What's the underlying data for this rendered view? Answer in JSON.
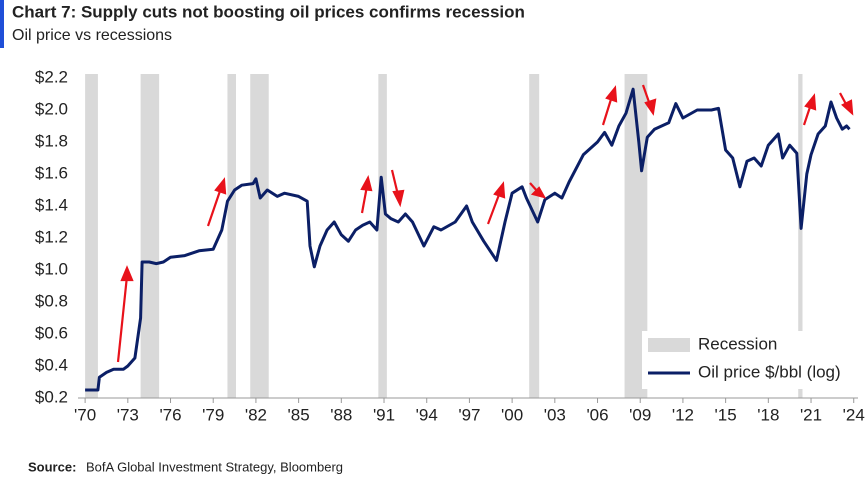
{
  "chart_data": {
    "type": "line",
    "title": "Chart 7: Supply cuts not boosting oil prices confirms recession",
    "subtitle": "Oil price vs recessions",
    "source_label": "Source:",
    "source": "BofA Global Investment Strategy, Bloomberg",
    "xlim": [
      1969.5,
      2024.3
    ],
    "ylim": [
      0.2,
      2.2
    ],
    "xticks": [
      {
        "value": 1970,
        "label": "'70"
      },
      {
        "value": 1973,
        "label": "'73"
      },
      {
        "value": 1976,
        "label": "'76"
      },
      {
        "value": 1979,
        "label": "'79"
      },
      {
        "value": 1982,
        "label": "'82"
      },
      {
        "value": 1985,
        "label": "'85"
      },
      {
        "value": 1988,
        "label": "'88"
      },
      {
        "value": 1991,
        "label": "'91"
      },
      {
        "value": 1994,
        "label": "'94"
      },
      {
        "value": 1997,
        "label": "'97"
      },
      {
        "value": 2000,
        "label": "'00"
      },
      {
        "value": 2003,
        "label": "'03"
      },
      {
        "value": 2006,
        "label": "'06"
      },
      {
        "value": 2009,
        "label": "'09"
      },
      {
        "value": 2012,
        "label": "'12"
      },
      {
        "value": 2015,
        "label": "'15"
      },
      {
        "value": 2018,
        "label": "'18"
      },
      {
        "value": 2021,
        "label": "'21"
      },
      {
        "value": 2024,
        "label": "'24"
      }
    ],
    "yticks": [
      {
        "value": 0.2,
        "label": "$0.2"
      },
      {
        "value": 0.4,
        "label": "$0.4"
      },
      {
        "value": 0.6,
        "label": "$0.6"
      },
      {
        "value": 0.8,
        "label": "$0.8"
      },
      {
        "value": 1.0,
        "label": "$1.0"
      },
      {
        "value": 1.2,
        "label": "$1.2"
      },
      {
        "value": 1.4,
        "label": "$1.4"
      },
      {
        "value": 1.6,
        "label": "$1.6"
      },
      {
        "value": 1.8,
        "label": "$1.8"
      },
      {
        "value": 2.0,
        "label": "$2.0"
      },
      {
        "value": 2.2,
        "label": "$2.2"
      }
    ],
    "grid": false,
    "legend": "bottom-right",
    "recessions": {
      "name": "Recession",
      "color": "#d9d9d9",
      "ranges": [
        [
          1970.0,
          1970.9
        ],
        [
          1973.9,
          1975.2
        ],
        [
          1980.0,
          1980.6
        ],
        [
          1981.6,
          1982.9
        ],
        [
          1990.6,
          1991.2
        ],
        [
          2001.2,
          2001.9
        ],
        [
          2007.9,
          2009.5
        ],
        [
          2020.1,
          2020.4
        ]
      ]
    },
    "series": [
      {
        "name": "Oil price $/bbl (log)",
        "color": "#0b1f66",
        "x": [
          1970,
          1970.9,
          1971,
          1971.5,
          1972,
          1972.7,
          1973,
          1973.5,
          1973.9,
          1974.0,
          1974.5,
          1975,
          1975.5,
          1976,
          1977,
          1978,
          1979,
          1979.6,
          1980,
          1980.5,
          1981,
          1981.8,
          1982,
          1982.3,
          1982.8,
          1983.5,
          1984,
          1985,
          1985.6,
          1985.8,
          1986.1,
          1986.5,
          1987,
          1987.5,
          1988,
          1988.5,
          1989,
          1989.5,
          1990,
          1990.5,
          1990.8,
          1991.1,
          1991.5,
          1992,
          1992.5,
          1993,
          1993.8,
          1994.5,
          1995,
          1996,
          1996.8,
          1997.2,
          1998,
          1998.9,
          1999.5,
          2000,
          2000.7,
          2001,
          2001.8,
          2002.3,
          2003,
          2003.5,
          2004,
          2005,
          2006,
          2006.5,
          2007,
          2007.5,
          2008,
          2008.5,
          2008.9,
          2009.1,
          2009.5,
          2010,
          2011,
          2011.5,
          2012,
          2013,
          2014,
          2014.5,
          2015,
          2015.5,
          2016,
          2016.5,
          2017,
          2017.5,
          2018,
          2018.7,
          2019,
          2019.5,
          2020,
          2020.3,
          2020.7,
          2021,
          2021.5,
          2022,
          2022.4,
          2022.8,
          2023.2,
          2023.5,
          2023.7
        ],
        "values": [
          0.25,
          0.25,
          0.33,
          0.36,
          0.38,
          0.38,
          0.4,
          0.45,
          0.7,
          1.05,
          1.05,
          1.04,
          1.05,
          1.08,
          1.09,
          1.12,
          1.13,
          1.25,
          1.43,
          1.5,
          1.53,
          1.54,
          1.57,
          1.45,
          1.5,
          1.46,
          1.48,
          1.46,
          1.43,
          1.15,
          1.02,
          1.15,
          1.25,
          1.3,
          1.22,
          1.18,
          1.25,
          1.28,
          1.3,
          1.25,
          1.58,
          1.35,
          1.32,
          1.3,
          1.35,
          1.3,
          1.15,
          1.27,
          1.25,
          1.3,
          1.4,
          1.3,
          1.18,
          1.06,
          1.3,
          1.48,
          1.52,
          1.45,
          1.3,
          1.44,
          1.48,
          1.45,
          1.55,
          1.72,
          1.8,
          1.86,
          1.78,
          1.9,
          1.98,
          2.13,
          1.8,
          1.62,
          1.83,
          1.88,
          1.92,
          2.04,
          1.95,
          2.0,
          2.0,
          2.01,
          1.75,
          1.7,
          1.52,
          1.68,
          1.7,
          1.65,
          1.78,
          1.85,
          1.7,
          1.78,
          1.73,
          1.26,
          1.6,
          1.72,
          1.85,
          1.9,
          2.05,
          1.95,
          1.88,
          1.9,
          1.88
        ]
      }
    ]
  }
}
